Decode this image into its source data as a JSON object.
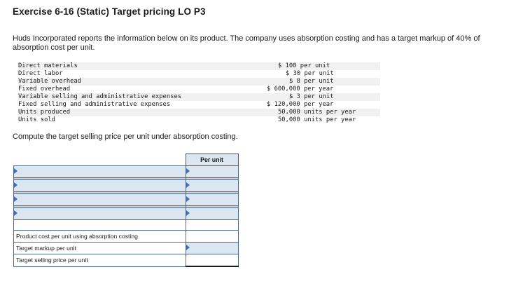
{
  "title": "Exercise 6-16 (Static) Target pricing LO P3",
  "intro": "Huds Incorporated reports the information below on its product. The company uses absorption costing and has a target markup of 40% of absorption cost per unit.",
  "given": [
    {
      "label": "Direct materials",
      "value": "$ 100 per unit"
    },
    {
      "label": "Direct labor",
      "value": "$ 30 per unit"
    },
    {
      "label": "Variable overhead",
      "value": "$ 8 per unit"
    },
    {
      "label": "Fixed overhead",
      "value": "$ 600,000 per year"
    },
    {
      "label": "Variable selling and administrative expenses",
      "value": "$ 3 per unit"
    },
    {
      "label": "Fixed selling and administrative expenses",
      "value": "$ 120,000 per year"
    },
    {
      "label": "Units produced",
      "value": "50,000 units per year"
    },
    {
      "label": "Units sold",
      "value": "50,000 units per year"
    }
  ],
  "prompt": "Compute the target selling price per unit under absorption costing.",
  "sheet": {
    "header": "Per unit",
    "row_product_cost": "Product cost per unit using absorption costing",
    "row_markup": "Target markup per unit",
    "row_selling_price": "Target selling price per unit"
  }
}
